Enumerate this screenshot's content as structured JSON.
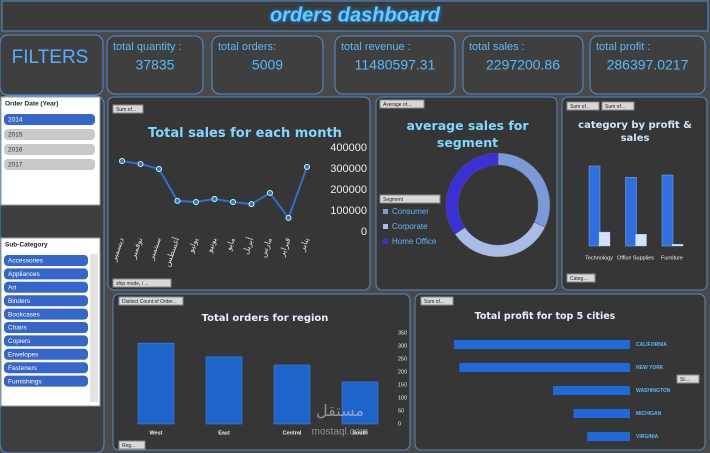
{
  "header": {
    "title": "orders dashboard"
  },
  "filters": {
    "title": "FILTERS"
  },
  "kpis": [
    {
      "label": "total quantity :",
      "value": 37835
    },
    {
      "label": "total orders:",
      "value": 5009
    },
    {
      "label": "total revenue :",
      "value": 11480597.31
    },
    {
      "label": "total sales :",
      "value": 2297200.86
    },
    {
      "label": "total profit :",
      "value": 286397.0217
    }
  ],
  "slicers": [
    {
      "title": "Order Date (Year)",
      "items": [
        "2014",
        "2015",
        "2016",
        "2017"
      ]
    },
    {
      "title": "Sub-Category",
      "items": [
        "Accessories",
        "Appliances",
        "Art",
        "Binders",
        "Bookcases",
        "Chairs",
        "Copiers",
        "Envelopes",
        "Fasteners",
        "Furnishings"
      ]
    }
  ],
  "watermark": [
    "مستقل",
    "mostaql.com"
  ],
  "chart_data": [
    {
      "type": "line",
      "title": "Total sales for each month",
      "buttons": [
        "Sum of...",
        "ship mode, i ..."
      ],
      "categories": [
        "ديسمبر",
        "نوفمبر",
        "سبتمبر",
        "أغسطس",
        "يوليو",
        "يونيو",
        "مايو",
        "أبريل",
        "مارس",
        "فبراير",
        "يناير"
      ],
      "values": [
        338000,
        324000,
        300000,
        148000,
        143000,
        157000,
        143000,
        133000,
        186000,
        67000,
        310000
      ],
      "color": "#2f6fd0",
      "ylim": [
        0,
        400000
      ],
      "yticks": [
        0,
        100000,
        200000,
        300000,
        400000
      ]
    },
    {
      "type": "pie",
      "donut": true,
      "title": "average sales for segment",
      "buttons": [
        "Average of...",
        "Segment"
      ],
      "categories": [
        "Consumer",
        "Corporate",
        "Home Office"
      ],
      "values": [
        223.73,
        233.82,
        240.97
      ],
      "colors": [
        "#7d9ad8",
        "#a9bce6",
        "#3b2fd8"
      ]
    },
    {
      "type": "bar",
      "title": "category by profit & sales",
      "buttons": [
        "Sum of...",
        "Sum of...",
        "Categ..."
      ],
      "categories": [
        "Technology",
        "Office Supplies",
        "Furniture"
      ],
      "series": [
        {
          "color": "#2d6ee0",
          "values": [
            836154,
            719047,
            742000
          ]
        },
        {
          "color": "#d4e2f6",
          "values": [
            145454,
            122490,
            18451
          ]
        }
      ]
    },
    {
      "type": "bar",
      "title": "Total orders for region",
      "buttons": [
        "Distinct Count of Order...",
        "Reg..."
      ],
      "categories": [
        "West",
        "East",
        "Central",
        "South"
      ],
      "values": [
        311,
        258,
        227,
        162
      ],
      "color": "#1f64c8",
      "ylim": [
        0,
        350
      ],
      "yticks": [
        0,
        50,
        100,
        150,
        200,
        250,
        300,
        350
      ]
    },
    {
      "type": "bar",
      "orientation": "horizontal",
      "title": "Total profit for top 5 cities",
      "buttons": [
        "Sum of...",
        "St..."
      ],
      "categories": [
        "CALIFORNIA",
        "NEW YORK",
        "WASHINGTON",
        "MICHIGAN",
        "VIRGINIA"
      ],
      "values": [
        76381,
        74038,
        33402,
        24463,
        18597
      ],
      "color": "#1f6ad8"
    }
  ]
}
